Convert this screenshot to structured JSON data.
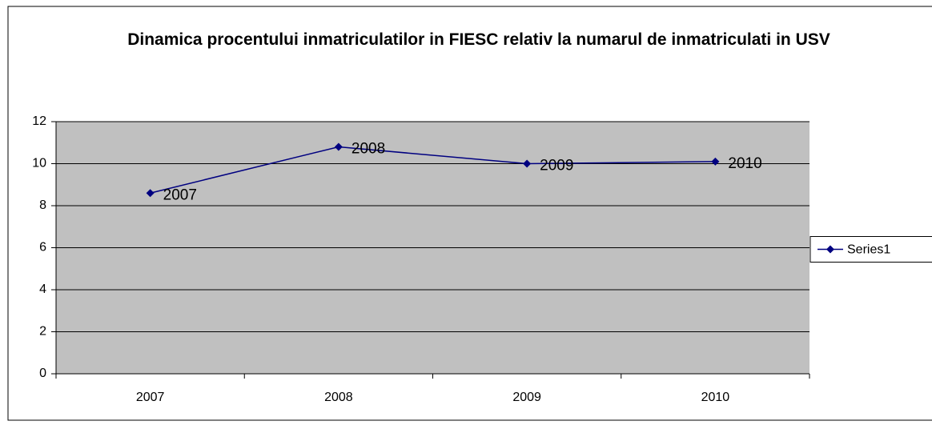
{
  "chart_data": {
    "type": "line",
    "title": "Dinamica procentului inmatriculatilor in FIESC relativ la numarul de inmatriculati in USV",
    "categories": [
      "2007",
      "2008",
      "2009",
      "2010"
    ],
    "series": [
      {
        "name": "Series1",
        "color": "#000080",
        "values": [
          8.6,
          10.8,
          10.0,
          10.1
        ]
      }
    ],
    "ylim": [
      0,
      12
    ],
    "yticks": [
      0,
      2,
      4,
      6,
      8,
      10,
      12
    ],
    "grid": true,
    "legend": "right",
    "plot_background": "#c0c0c0"
  }
}
